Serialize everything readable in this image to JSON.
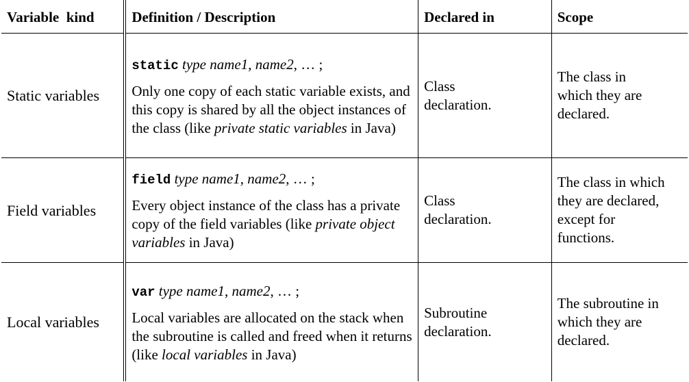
{
  "headers": {
    "kind": "Variable  kind",
    "definition": "Definition / Description",
    "declared": "Declared in",
    "scope": "Scope"
  },
  "rows": [
    {
      "kind": "Static variables",
      "keyword": "static",
      "syntax_type_names": "type name1",
      "syntax_sep": ", ",
      "syntax_name2": "name2",
      "syntax_tail": ", … ;",
      "desc_pre": "Only one copy of each static variable exists, and this copy is shared by all the object instances of the class (like ",
      "desc_em": "private static variables",
      "desc_post": " in Java)",
      "declared": "Class declaration.",
      "scope": "The class in which they are declared."
    },
    {
      "kind": "Field variables",
      "keyword": "field",
      "syntax_type_names": "type name1",
      "syntax_sep": ", ",
      "syntax_name2": "name2",
      "syntax_tail": ", … ;",
      "desc_pre": "Every object instance of the class has a private copy of the field variables (like ",
      "desc_em": "private object variables",
      "desc_post": " in Java)",
      "declared": "Class declaration.",
      "scope": "The class in which they are declared, except for functions."
    },
    {
      "kind": "Local variables",
      "keyword": "var",
      "syntax_type_names": "type name1",
      "syntax_sep": ", ",
      "syntax_name2": "name2",
      "syntax_tail": ", … ;",
      "desc_pre": "Local variables are allocated on the stack when the subroutine is called and freed when it returns (like ",
      "desc_em": "local variables",
      "desc_post": " in Java)",
      "declared": "Subroutine declaration.",
      "scope": "The subroutine in which they are declared."
    }
  ]
}
